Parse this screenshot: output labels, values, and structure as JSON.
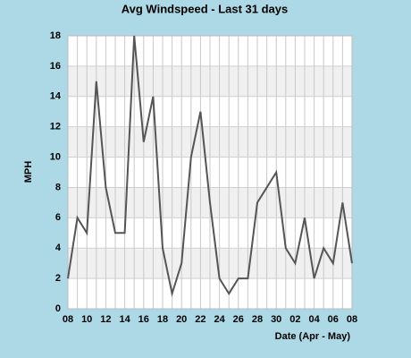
{
  "chart_data": {
    "type": "line",
    "title": "Avg Windspeed - Last 31 days",
    "x_label": "Date (Apr - May)",
    "y_label": "MPH",
    "categories": [
      "08",
      null,
      "10",
      null,
      "12",
      null,
      "14",
      null,
      "16",
      null,
      "18",
      null,
      "20",
      null,
      "22",
      null,
      "24",
      null,
      "26",
      null,
      "28",
      null,
      "30",
      null,
      "02",
      null,
      "04",
      null,
      "06",
      null,
      "08"
    ],
    "values": [
      2,
      6,
      5,
      15,
      8,
      5,
      5,
      18,
      11,
      14,
      4,
      1,
      3,
      10,
      13,
      7,
      2,
      1,
      2,
      2,
      7,
      8,
      9,
      4,
      3,
      6,
      2,
      4,
      3,
      7,
      3
    ],
    "color": "#555555",
    "ylim": [
      0,
      18
    ],
    "yticks": [
      0,
      2,
      4,
      6,
      8,
      10,
      12,
      14,
      16,
      18
    ],
    "grid": true
  }
}
